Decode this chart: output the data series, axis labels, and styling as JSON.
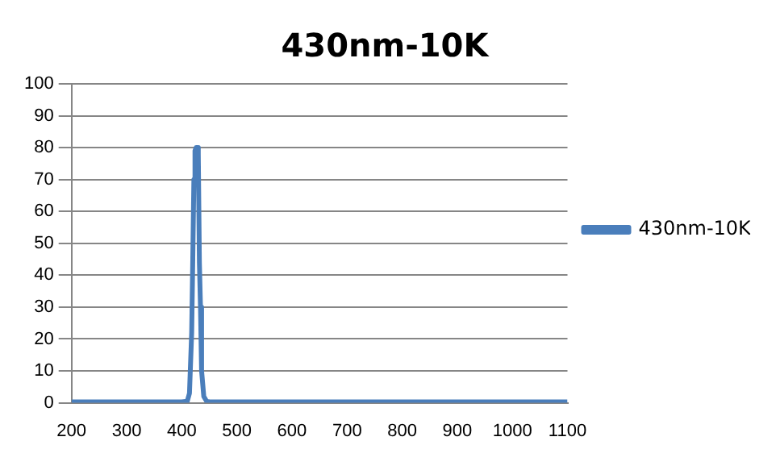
{
  "chart_data": {
    "type": "line",
    "title": "430nm-10K",
    "x": [
      200,
      300,
      400,
      410,
      414,
      418,
      420,
      422,
      424,
      426,
      428,
      430,
      432,
      434,
      436,
      440,
      445,
      450,
      500,
      600,
      700,
      800,
      900,
      1000,
      1100
    ],
    "series": [
      {
        "name": "430nm-10K",
        "color": "#4a7ebb",
        "values": [
          0.3,
          0.3,
          0.3,
          0.5,
          3,
          22,
          45,
          70,
          79,
          80,
          80,
          78,
          44,
          30,
          10,
          2,
          0.5,
          0.3,
          0.3,
          0.3,
          0.3,
          0.3,
          0.3,
          0.3,
          0.3
        ]
      }
    ],
    "xlim": [
      200,
      1100
    ],
    "xticks": [
      200,
      300,
      400,
      500,
      600,
      700,
      800,
      900,
      1000,
      1100
    ],
    "ylim": [
      0,
      100
    ],
    "yticks": [
      0,
      10,
      20,
      30,
      40,
      50,
      60,
      70,
      80,
      90,
      100
    ],
    "grid": "y",
    "legend": "right",
    "marker": "none",
    "line_style": "solid"
  }
}
